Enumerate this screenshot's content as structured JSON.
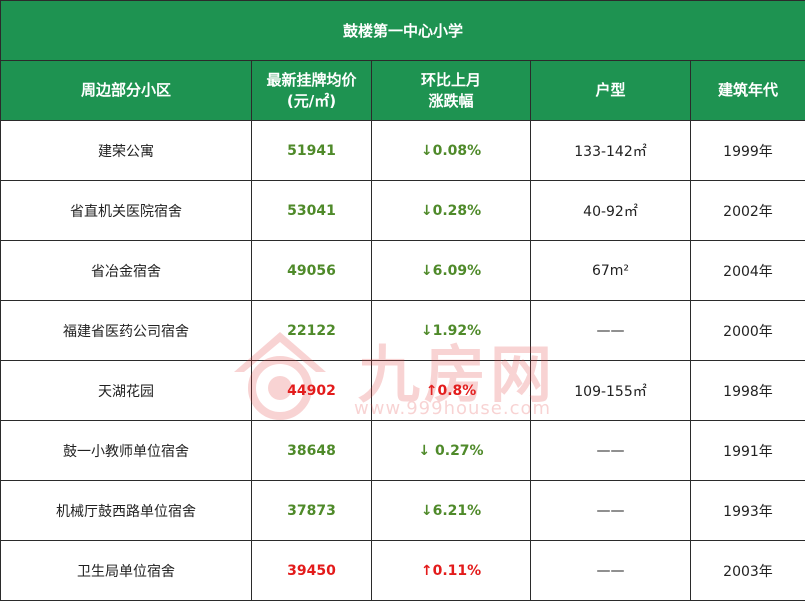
{
  "title": "鼓楼第一中心小学",
  "headers": {
    "community": "周边部分小区",
    "price_line1": "最新挂牌均价",
    "price_line2": "(元/㎡)",
    "change_line1": "环比上月",
    "change_line2": "涨跌幅",
    "layout": "户型",
    "year": "建筑年代"
  },
  "rows": [
    {
      "name": "建荣公寓",
      "price": "51941",
      "change": "↓0.08%",
      "layout": "133-142㎡",
      "year": "1999年",
      "trend": "down"
    },
    {
      "name": "省直机关医院宿舍",
      "price": "53041",
      "change": "↓0.28%",
      "layout": "40-92㎡",
      "year": "2002年",
      "trend": "down"
    },
    {
      "name": "省冶金宿舍",
      "price": "49056",
      "change": "↓6.09%",
      "layout": "67m²",
      "year": "2004年",
      "trend": "down"
    },
    {
      "name": "福建省医药公司宿舍",
      "price": "22122",
      "change": "↓1.92%",
      "layout": "——",
      "year": "2000年",
      "trend": "down"
    },
    {
      "name": "天湖花园",
      "price": "44902",
      "change": "↑0.8%",
      "layout": "109-155㎡",
      "year": "1998年",
      "trend": "up"
    },
    {
      "name": "鼓一小教师单位宿舍",
      "price": "38648",
      "change": "↓ 0.27%",
      "layout": "——",
      "year": "1991年",
      "trend": "down"
    },
    {
      "name": "机械厅鼓西路单位宿舍",
      "price": "37873",
      "change": "↓6.21%",
      "layout": "——",
      "year": "1993年",
      "trend": "down"
    },
    {
      "name": "卫生局单位宿舍",
      "price": "39450",
      "change": "↑0.11%",
      "layout": "——",
      "year": "2003年",
      "trend": "up"
    }
  ],
  "watermark": {
    "brand": "九房网",
    "url": "www.999house.com"
  },
  "colors": {
    "header_bg": "#1e9351",
    "down": "#4f8a2a",
    "up": "#e31b1b"
  }
}
